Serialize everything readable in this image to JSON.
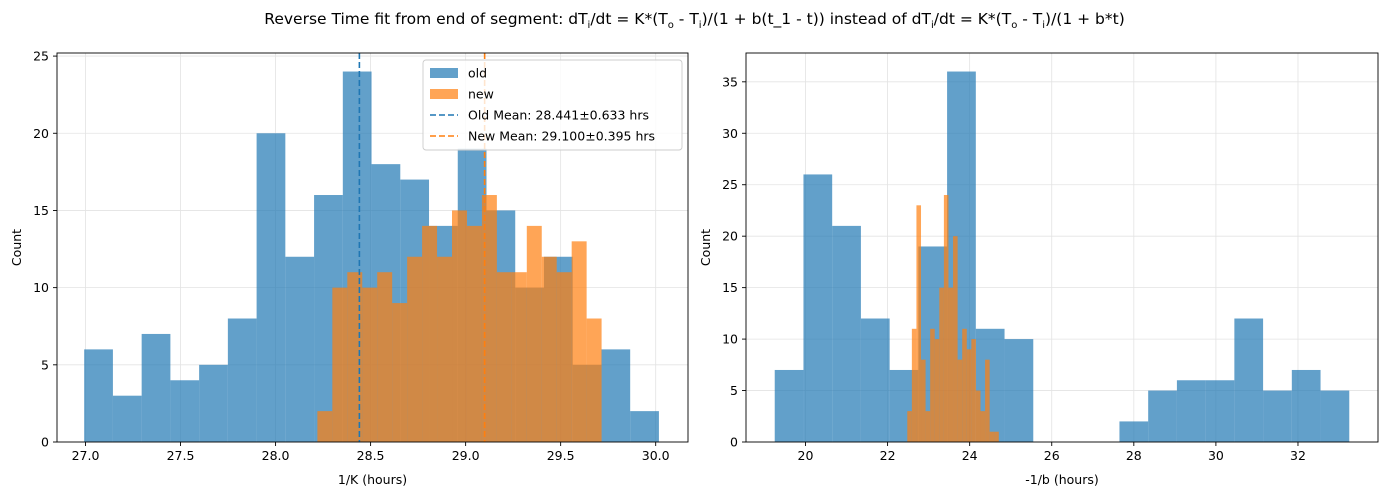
{
  "suptitle": {
    "prefix": "Reverse Time fit from end of segment: dT",
    "s1": "i",
    "t1": "/dt = K*(T",
    "s2": "o",
    "t2": " - T",
    "s3": "i",
    "t3": ")/(1 + b(t_1 - t)) instead of dT",
    "s4": "i",
    "t4": "/dt = K*(T",
    "s5": "o",
    "t5": " - T",
    "s6": "i",
    "t6": ")/(1 + b*t)"
  },
  "colors": {
    "old": "#1f77b4",
    "new": "#ff7f0e"
  },
  "chart_data": [
    {
      "type": "bar",
      "subtype": "histogram",
      "xlabel": "1/K (hours)",
      "ylabel": "Count",
      "xlim": [
        26.85,
        30.17
      ],
      "ylim": [
        0,
        25.2
      ],
      "xticks": [
        27.0,
        27.5,
        28.0,
        28.5,
        29.0,
        29.5,
        30.0
      ],
      "xtick_labels": [
        "27.0",
        "27.5",
        "28.0",
        "28.5",
        "29.0",
        "29.5",
        "30.0"
      ],
      "yticks": [
        0,
        5,
        10,
        15,
        20,
        25
      ],
      "ytick_labels": [
        "0",
        "5",
        "10",
        "15",
        "20",
        "25"
      ],
      "grid": true,
      "legend_position": "upper right",
      "legend": [
        "old",
        "new",
        "Old Mean: 28.441±0.633 hrs",
        "New Mean: 29.100±0.395 hrs"
      ],
      "series": [
        {
          "name": "old",
          "bin_start": 26.993,
          "bin_width": 0.1512,
          "counts": [
            6,
            3,
            7,
            4,
            5,
            8,
            20,
            12,
            16,
            24,
            18,
            17,
            14,
            19,
            15,
            10,
            12,
            5,
            6,
            2
          ]
        },
        {
          "name": "new",
          "bin_start": 28.22,
          "bin_width": 0.0787,
          "counts": [
            2,
            10,
            11,
            10,
            11,
            9,
            12,
            14,
            12,
            15,
            14,
            16,
            11,
            11,
            14,
            12,
            11,
            13,
            8
          ]
        }
      ],
      "mean_lines": [
        {
          "name": "Old Mean: 28.441±0.633 hrs",
          "x": 28.441
        },
        {
          "name": "New Mean: 29.100±0.395 hrs",
          "x": 29.1
        }
      ]
    },
    {
      "type": "bar",
      "subtype": "histogram",
      "xlabel": "-1/b (hours)",
      "ylabel": "Count",
      "xlim": [
        18.55,
        33.95
      ],
      "ylim": [
        0,
        37.8
      ],
      "xticks": [
        20,
        22,
        24,
        26,
        28,
        30,
        32
      ],
      "xtick_labels": [
        "20",
        "22",
        "24",
        "26",
        "28",
        "30",
        "32"
      ],
      "yticks": [
        0,
        5,
        10,
        15,
        20,
        25,
        30,
        35
      ],
      "ytick_labels": [
        "0",
        "5",
        "10",
        "15",
        "20",
        "25",
        "30",
        "35"
      ],
      "grid": true,
      "series": [
        {
          "name": "old",
          "bin_start": 19.25,
          "bin_width": 0.7,
          "counts": [
            7,
            26,
            21,
            12,
            7,
            19,
            36,
            11,
            10,
            0,
            0,
            0,
            2,
            5,
            6,
            6,
            12,
            5,
            7,
            5
          ]
        },
        {
          "name": "new",
          "bin_start": 22.48,
          "bin_width": 0.1115,
          "counts": [
            3,
            11,
            23,
            8,
            3,
            11,
            10,
            15,
            24,
            15,
            20,
            8,
            11,
            9,
            10,
            5,
            3,
            8,
            1,
            1
          ]
        }
      ]
    }
  ]
}
